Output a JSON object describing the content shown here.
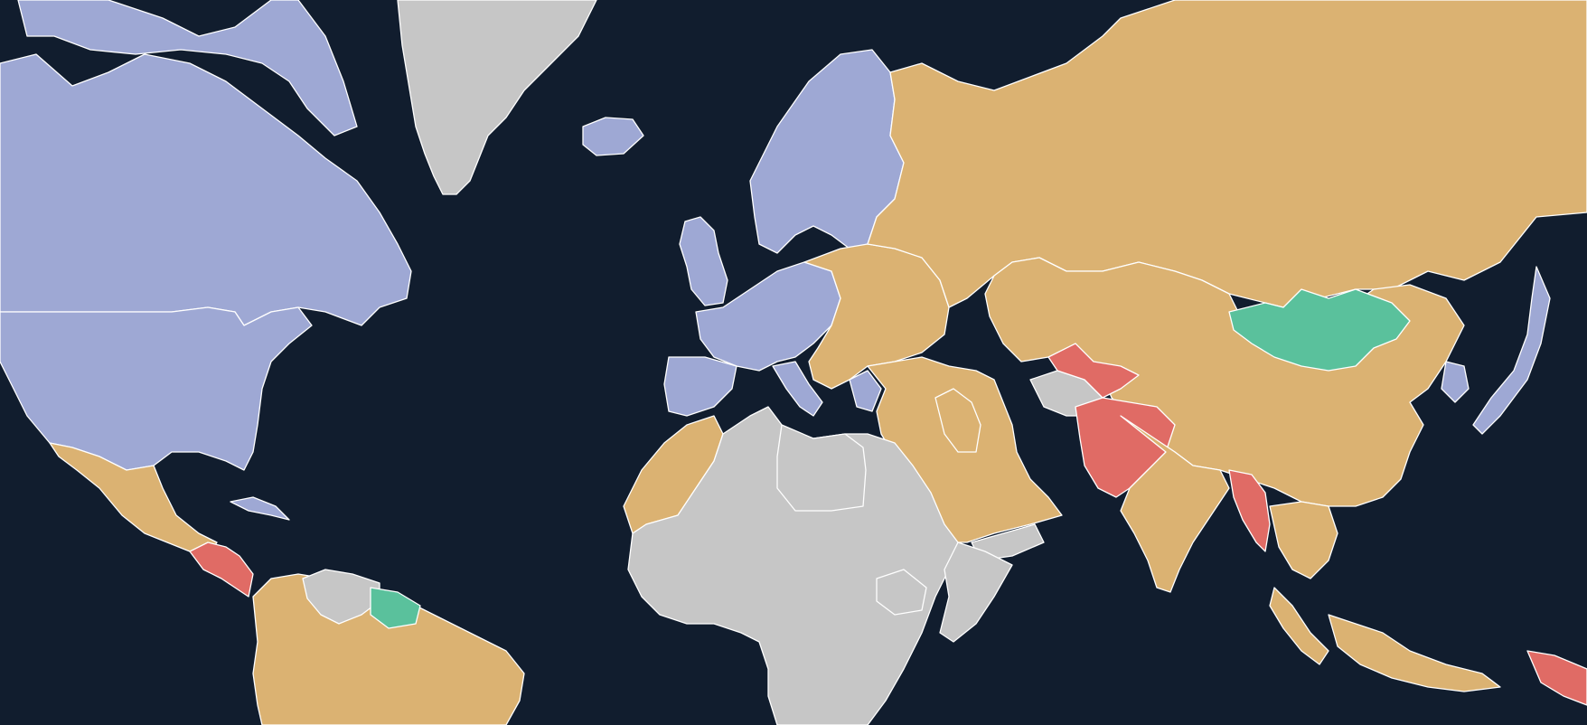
{
  "map": {
    "background": "#111d2e",
    "border_color": "#ffffff",
    "categories": [
      {
        "key": "blue",
        "color": "#9ea8d4"
      },
      {
        "key": "gold",
        "color": "#dbb272"
      },
      {
        "key": "red",
        "color": "#e06b65"
      },
      {
        "key": "green",
        "color": "#5ac19c"
      },
      {
        "key": "grey",
        "color": "#c6c6c6"
      }
    ],
    "regions": [
      {
        "name": "canada",
        "category": "blue"
      },
      {
        "name": "arctic-islands",
        "category": "blue"
      },
      {
        "name": "usa",
        "category": "blue"
      },
      {
        "name": "greenland",
        "category": "grey"
      },
      {
        "name": "iceland",
        "category": "blue"
      },
      {
        "name": "scandinavia",
        "category": "blue"
      },
      {
        "name": "western-europe",
        "category": "blue"
      },
      {
        "name": "british-isles",
        "category": "blue"
      },
      {
        "name": "iberia",
        "category": "blue"
      },
      {
        "name": "italy",
        "category": "blue"
      },
      {
        "name": "eastern-europe",
        "category": "gold"
      },
      {
        "name": "russia",
        "category": "gold"
      },
      {
        "name": "mongolia",
        "category": "green"
      },
      {
        "name": "china-central-asia",
        "category": "gold"
      },
      {
        "name": "middle-east",
        "category": "gold"
      },
      {
        "name": "south-asia",
        "category": "gold"
      },
      {
        "name": "afghanistan-pakistan",
        "category": "red"
      },
      {
        "name": "iraq",
        "category": "red"
      },
      {
        "name": "north-africa-grey",
        "category": "grey"
      },
      {
        "name": "africa-red",
        "category": "red"
      },
      {
        "name": "horn-of-africa",
        "category": "grey"
      },
      {
        "name": "myanmar",
        "category": "red"
      },
      {
        "name": "southeast-asia",
        "category": "gold"
      },
      {
        "name": "korea",
        "category": "blue"
      },
      {
        "name": "japan",
        "category": "blue"
      },
      {
        "name": "mexico",
        "category": "gold"
      },
      {
        "name": "central-america",
        "category": "red"
      },
      {
        "name": "caribbean",
        "category": "blue"
      },
      {
        "name": "south-america",
        "category": "gold"
      },
      {
        "name": "venezuela",
        "category": "grey"
      },
      {
        "name": "guianas",
        "category": "green"
      },
      {
        "name": "indonesia",
        "category": "gold"
      },
      {
        "name": "papua",
        "category": "red"
      },
      {
        "name": "western-sahara-morocco",
        "category": "gold"
      },
      {
        "name": "turkmenistan",
        "category": "grey"
      },
      {
        "name": "uzbekistan",
        "category": "red"
      }
    ]
  }
}
